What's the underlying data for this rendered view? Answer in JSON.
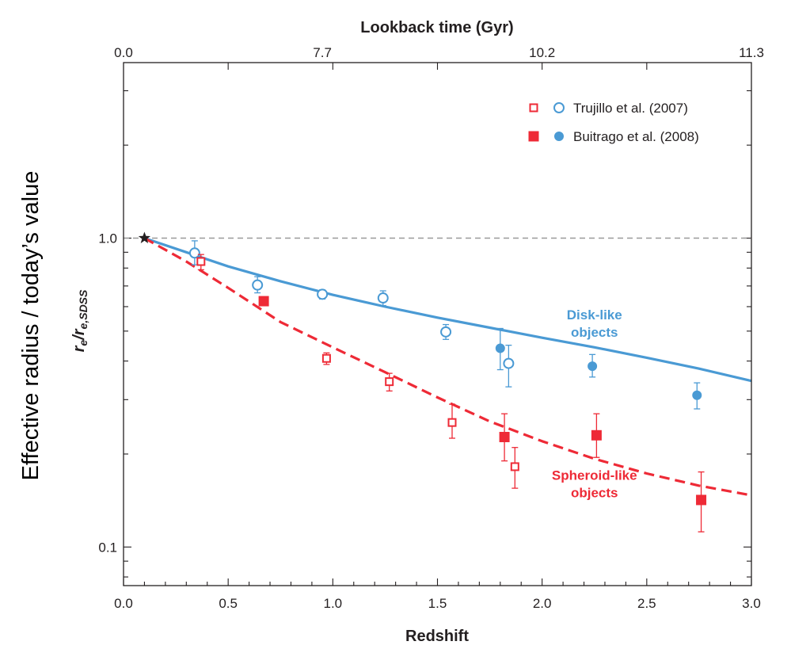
{
  "chart_data": {
    "type": "scatter",
    "top_axis": {
      "title": "Lookback time (Gyr)",
      "ticks": [
        {
          "label": "0.0",
          "redshift": 0.0
        },
        {
          "label": "7.7",
          "redshift": 0.95
        },
        {
          "label": "10.2",
          "redshift": 2.0
        },
        {
          "label": "11.3",
          "redshift": 3.0
        }
      ]
    },
    "x_axis": {
      "title": "Redshift",
      "range": [
        0.0,
        3.0
      ],
      "ticks": [
        "0.0",
        "0.5",
        "1.0",
        "1.5",
        "2.0",
        "2.5",
        "3.0"
      ],
      "tick_values": [
        0.0,
        0.5,
        1.0,
        1.5,
        2.0,
        2.5,
        3.0
      ],
      "minor_step": 0.1
    },
    "y_axis": {
      "title_main": "r",
      "title_sub1": "e",
      "title_sep": "/r",
      "title_sub2": "e,SDSS",
      "side_label": "Effective radius / today’s value",
      "scale": "log",
      "range": [
        0.075,
        3.7
      ],
      "ticks": [
        "0.1",
        "1.0"
      ],
      "tick_values": [
        0.1,
        1.0
      ]
    },
    "reference_line": {
      "y": 1.0,
      "style": "dashed",
      "color": "#9a9a9a"
    },
    "reference_point": {
      "x": 0.1,
      "y": 1.0,
      "marker": "star",
      "color": "#231f20"
    },
    "legend": {
      "position": "top-right",
      "entries": [
        {
          "label": "Trujillo et al. (2007)",
          "style": "open"
        },
        {
          "label": "Buitrago et al. (2008)",
          "style": "filled"
        }
      ]
    },
    "colors": {
      "disk": "#4a9ad4",
      "spheroid": "#ee2a36",
      "axes": "#231f20"
    },
    "series": [
      {
        "name": "Trujillo et al. (2007)",
        "class": "disk",
        "marker": "open-circle",
        "points": [
          [
            0.34,
            0.895,
            0.98,
            0.82
          ],
          [
            0.64,
            0.705,
            0.75,
            0.665
          ],
          [
            0.95,
            0.658,
            0.68,
            0.635
          ],
          [
            1.24,
            0.64,
            0.675,
            0.605
          ],
          [
            1.54,
            0.497,
            0.525,
            0.47
          ],
          [
            1.84,
            0.393,
            0.45,
            0.33
          ]
        ]
      },
      {
        "name": "Buitrago et al. (2008)",
        "class": "disk",
        "marker": "filled-circle",
        "points": [
          [
            1.8,
            0.44,
            0.51,
            0.375
          ],
          [
            2.24,
            0.385,
            0.42,
            0.355
          ],
          [
            2.74,
            0.31,
            0.34,
            0.28
          ]
        ]
      },
      {
        "name": "Trujillo et al. (2007)",
        "class": "spheroid",
        "marker": "open-square",
        "points": [
          [
            0.37,
            0.84,
            0.885,
            0.79
          ],
          [
            0.97,
            0.408,
            0.425,
            0.39
          ],
          [
            1.27,
            0.343,
            0.365,
            0.32
          ],
          [
            1.57,
            0.253,
            0.29,
            0.225
          ],
          [
            1.87,
            0.182,
            0.21,
            0.155
          ]
        ]
      },
      {
        "name": "Buitrago et al. (2008)",
        "class": "spheroid",
        "marker": "filled-square",
        "points": [
          [
            0.67,
            0.625,
            0.635,
            0.615
          ],
          [
            1.82,
            0.227,
            0.27,
            0.19
          ],
          [
            2.26,
            0.23,
            0.27,
            0.195
          ],
          [
            2.76,
            0.142,
            0.175,
            0.112
          ]
        ]
      }
    ],
    "fits": [
      {
        "class": "disk",
        "style": "solid",
        "points": [
          [
            0.1,
            1.0
          ],
          [
            0.3,
            0.9
          ],
          [
            0.5,
            0.81
          ],
          [
            0.75,
            0.725
          ],
          [
            1.0,
            0.655
          ],
          [
            1.25,
            0.6
          ],
          [
            1.5,
            0.553
          ],
          [
            1.75,
            0.513
          ],
          [
            2.0,
            0.476
          ],
          [
            2.25,
            0.443
          ],
          [
            2.5,
            0.41
          ],
          [
            2.75,
            0.378
          ],
          [
            3.0,
            0.345
          ]
        ]
      },
      {
        "class": "spheroid",
        "style": "dashed",
        "points": [
          [
            0.1,
            1.0
          ],
          [
            0.3,
            0.84
          ],
          [
            0.5,
            0.69
          ],
          [
            0.75,
            0.535
          ],
          [
            1.0,
            0.443
          ],
          [
            1.25,
            0.368
          ],
          [
            1.5,
            0.305
          ],
          [
            1.75,
            0.255
          ],
          [
            2.0,
            0.22
          ],
          [
            2.25,
            0.193
          ],
          [
            2.5,
            0.173
          ],
          [
            2.75,
            0.158
          ],
          [
            3.0,
            0.147
          ]
        ]
      }
    ],
    "annotations": [
      {
        "lines": [
          "Disk-like",
          "objects"
        ],
        "class": "disk",
        "anchor": [
          2.25,
          0.545
        ]
      },
      {
        "lines": [
          "Spheroid-like",
          "objects"
        ],
        "class": "spheroid",
        "anchor": [
          2.25,
          0.165
        ]
      }
    ]
  }
}
